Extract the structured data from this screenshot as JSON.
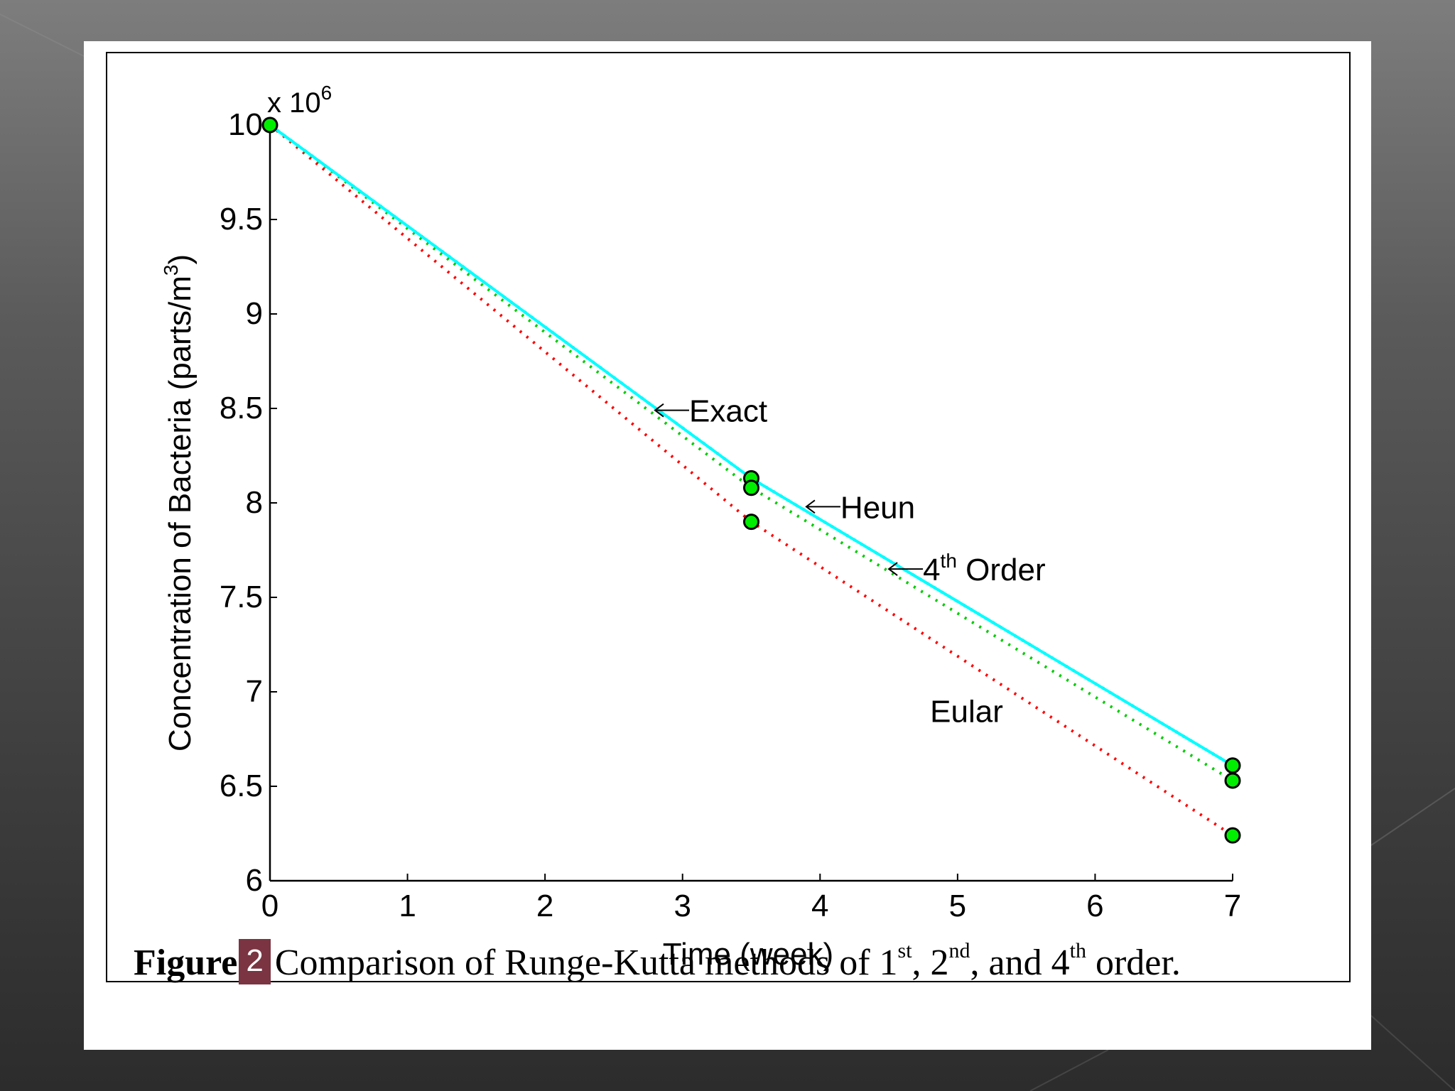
{
  "caption": {
    "label": "Figure",
    "number": "2",
    "text_before": "Comparison of Runge-Kutta methods of 1",
    "sup1": "st",
    "sep1": ", 2",
    "sup2": "nd",
    "sep2": ", and 4",
    "sup3": "th",
    "text_after": " order."
  },
  "chart_data": {
    "type": "line",
    "title": "",
    "xlabel": "Time (week)",
    "ylabel": "Concentration of Bacteria (parts/m3)",
    "ylabel_main": "Concentration of Bacteria (parts/m",
    "ylabel_sup": "3",
    "ylabel_close": ")",
    "y_multiplier": "x 10",
    "y_multiplier_exp": "6",
    "xlim": [
      0,
      7
    ],
    "ylim": [
      6,
      10
    ],
    "xticks": [
      "0",
      "1",
      "2",
      "3",
      "4",
      "5",
      "6",
      "7"
    ],
    "yticks": [
      "6",
      "6.5",
      "7",
      "7.5",
      "8",
      "8.5",
      "9",
      "9.5",
      "10"
    ],
    "grid": false,
    "series": [
      {
        "name": "Exact",
        "style": "solid",
        "color": "#00ffff",
        "x": [
          0,
          3.5,
          7
        ],
        "y": [
          10.0,
          8.13,
          6.61
        ]
      },
      {
        "name": "4th Order",
        "style": "dotted",
        "color": "#0000ff",
        "x": [
          0,
          3.5,
          7
        ],
        "y": [
          10.0,
          8.13,
          6.61
        ]
      },
      {
        "name": "Heun",
        "style": "dotted",
        "color": "#00cc00",
        "x": [
          0,
          3.5,
          7
        ],
        "y": [
          10.0,
          8.08,
          6.53
        ]
      },
      {
        "name": "Eular",
        "style": "dotted",
        "color": "#ff0000",
        "x": [
          0,
          3.5,
          7
        ],
        "y": [
          10.0,
          7.9,
          6.24
        ]
      }
    ],
    "markers": [
      {
        "x": 0,
        "y": 10.0
      },
      {
        "x": 3.5,
        "y": 8.13
      },
      {
        "x": 3.5,
        "y": 8.08
      },
      {
        "x": 3.5,
        "y": 7.9
      },
      {
        "x": 7,
        "y": 6.61
      },
      {
        "x": 7,
        "y": 6.53
      },
      {
        "x": 7,
        "y": 6.24
      }
    ],
    "marker_color": "#00ee00",
    "annotations": [
      {
        "text": "Exact",
        "arrow": true,
        "x": 2.8,
        "y": 8.49
      },
      {
        "text": "Heun",
        "arrow": true,
        "x": 3.9,
        "y": 7.98
      },
      {
        "text": "4",
        "sup": "th",
        "text_after": " Order",
        "arrow": true,
        "x": 4.5,
        "y": 7.65
      },
      {
        "text": "Eular",
        "arrow": false,
        "x": 4.8,
        "y": 6.9
      }
    ]
  }
}
